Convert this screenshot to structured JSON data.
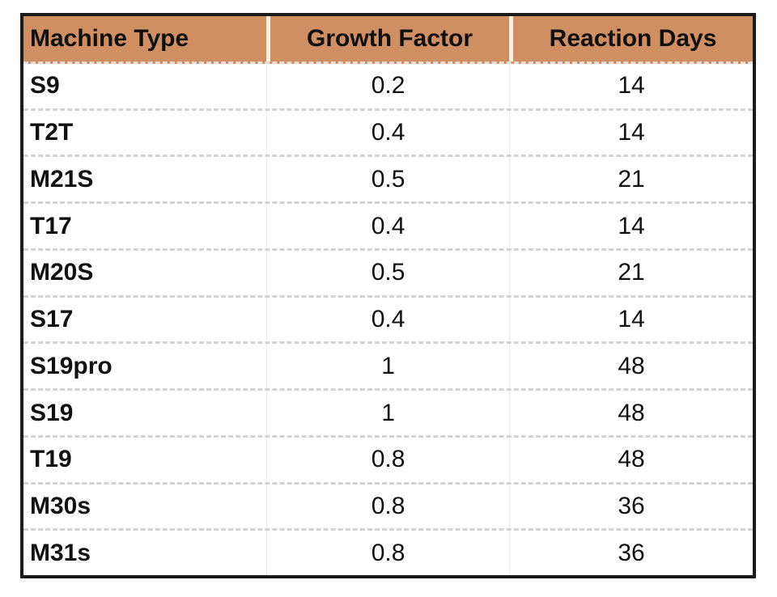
{
  "table": {
    "columns": [
      {
        "label": "Machine Type"
      },
      {
        "label": "Growth Factor"
      },
      {
        "label": "Reaction Days"
      }
    ],
    "rows": [
      {
        "machine_type": "S9",
        "growth_factor": "0.2",
        "reaction_days": "14"
      },
      {
        "machine_type": "T2T",
        "growth_factor": "0.4",
        "reaction_days": "14"
      },
      {
        "machine_type": "M21S",
        "growth_factor": "0.5",
        "reaction_days": "21"
      },
      {
        "machine_type": "T17",
        "growth_factor": "0.4",
        "reaction_days": "14"
      },
      {
        "machine_type": "M20S",
        "growth_factor": "0.5",
        "reaction_days": "21"
      },
      {
        "machine_type": "S17",
        "growth_factor": "0.4",
        "reaction_days": "14"
      },
      {
        "machine_type": "S19pro",
        "growth_factor": "1",
        "reaction_days": "48"
      },
      {
        "machine_type": "S19",
        "growth_factor": "1",
        "reaction_days": "48"
      },
      {
        "machine_type": "T19",
        "growth_factor": "0.8",
        "reaction_days": "48"
      },
      {
        "machine_type": "M30s",
        "growth_factor": "0.8",
        "reaction_days": "36"
      },
      {
        "machine_type": "M31s",
        "growth_factor": "0.8",
        "reaction_days": "36"
      }
    ]
  },
  "colors": {
    "header_bg": "#d08e63",
    "outer_border": "#1b1b1b",
    "row_divider": "#d2d2d2",
    "header_divider": "#f8f1ea",
    "column_divider": "#ebebeb",
    "text": "#111111"
  },
  "chart_data": {
    "type": "table",
    "columns": [
      "Machine Type",
      "Growth Factor",
      "Reaction Days"
    ],
    "rows": [
      [
        "S9",
        0.2,
        14
      ],
      [
        "T2T",
        0.4,
        14
      ],
      [
        "M21S",
        0.5,
        21
      ],
      [
        "T17",
        0.4,
        14
      ],
      [
        "M20S",
        0.5,
        21
      ],
      [
        "S17",
        0.4,
        14
      ],
      [
        "S19pro",
        1,
        48
      ],
      [
        "S19",
        1,
        48
      ],
      [
        "T19",
        0.8,
        48
      ],
      [
        "M30s",
        0.8,
        36
      ],
      [
        "M31s",
        0.8,
        36
      ]
    ]
  }
}
